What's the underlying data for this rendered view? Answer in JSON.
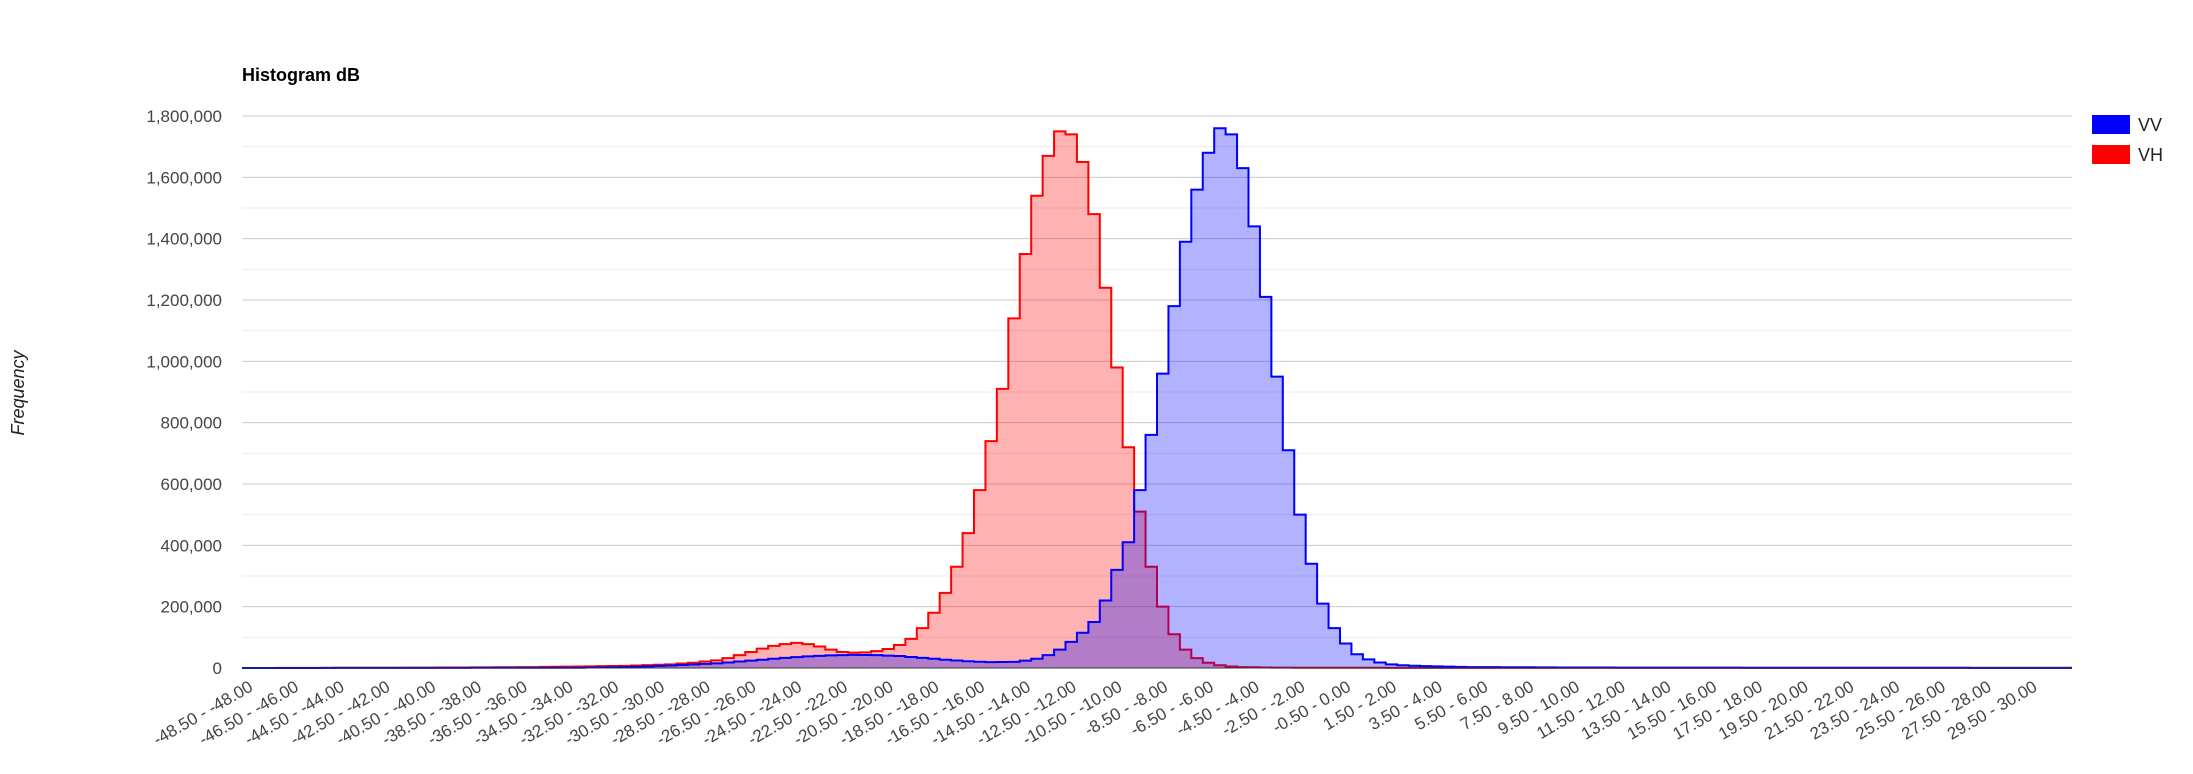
{
  "chart_data": {
    "type": "area",
    "title": "Histogram dB",
    "xlabel": "",
    "ylabel": "Frequency",
    "ylim": [
      0,
      1800000
    ],
    "y_ticks": [
      0,
      200000,
      400000,
      600000,
      800000,
      1000000,
      1200000,
      1400000,
      1600000,
      1800000
    ],
    "y_tick_labels": [
      "0",
      "200,000",
      "400,000",
      "600,000",
      "800,000",
      "1,000,000",
      "1,200,000",
      "1,400,000",
      "1,600,000",
      "1,800,000"
    ],
    "x_range": [
      -48.5,
      31.5
    ],
    "bin_width": 0.5,
    "x_tick_labels": [
      "-48.50 - -48.00",
      "-46.50 - -46.00",
      "-44.50 - -44.00",
      "-42.50 - -42.00",
      "-40.50 - -40.00",
      "-38.50 - -38.00",
      "-36.50 - -36.00",
      "-34.50 - -34.00",
      "-32.50 - -32.00",
      "-30.50 - -30.00",
      "-28.50 - -28.00",
      "-26.50 - -26.00",
      "-24.50 - -24.00",
      "-22.50 - -22.00",
      "-20.50 - -20.00",
      "-18.50 - -18.00",
      "-16.50 - -16.00",
      "-14.50 - -14.00",
      "-12.50 - -12.00",
      "-10.50 - -10.00",
      "-8.50 - -8.00",
      "-6.50 - -6.00",
      "-4.50 - -4.00",
      "-2.50 - -2.00",
      "-0.50 - 0.00",
      "1.50 - 2.00",
      "3.50 - 4.00",
      "5.50 - 6.00",
      "7.50 - 8.00",
      "9.50 - 10.00",
      "11.50 - 12.00",
      "13.50 - 14.00",
      "15.50 - 16.00",
      "17.50 - 18.00",
      "19.50 - 20.00",
      "21.50 - 22.00",
      "23.50 - 24.00",
      "25.50 - 26.00",
      "27.50 - 28.00",
      "29.50 - 30.00"
    ],
    "grid": true,
    "legend_position": "right",
    "series": [
      {
        "name": "VV",
        "color": "#0000ff",
        "fill": "#0000ff",
        "points": [
          [
            -48.5,
            0
          ],
          [
            -40,
            500
          ],
          [
            -34,
            1000
          ],
          [
            -32,
            3000
          ],
          [
            -30,
            8000
          ],
          [
            -28,
            15000
          ],
          [
            -26,
            27000
          ],
          [
            -25,
            33000
          ],
          [
            -24,
            38000
          ],
          [
            -23,
            41000
          ],
          [
            -22,
            43000
          ],
          [
            -21,
            42000
          ],
          [
            -20,
            39000
          ],
          [
            -19,
            33000
          ],
          [
            -18,
            27000
          ],
          [
            -17,
            22000
          ],
          [
            -16,
            19000
          ],
          [
            -15,
            20000
          ],
          [
            -14.5,
            24000
          ],
          [
            -14,
            30000
          ],
          [
            -13.5,
            42000
          ],
          [
            -13,
            60000
          ],
          [
            -12.5,
            85000
          ],
          [
            -12,
            115000
          ],
          [
            -11.5,
            150000
          ],
          [
            -11,
            220000
          ],
          [
            -10.5,
            320000
          ],
          [
            -10,
            410000
          ],
          [
            -9.5,
            580000
          ],
          [
            -9,
            760000
          ],
          [
            -8.5,
            960000
          ],
          [
            -8,
            1180000
          ],
          [
            -7.5,
            1390000
          ],
          [
            -7,
            1560000
          ],
          [
            -6.5,
            1680000
          ],
          [
            -6,
            1760000
          ],
          [
            -5.5,
            1740000
          ],
          [
            -5,
            1630000
          ],
          [
            -4.5,
            1440000
          ],
          [
            -4,
            1210000
          ],
          [
            -3.5,
            950000
          ],
          [
            -3,
            710000
          ],
          [
            -2.5,
            500000
          ],
          [
            -2,
            340000
          ],
          [
            -1.5,
            210000
          ],
          [
            -1,
            130000
          ],
          [
            -0.5,
            80000
          ],
          [
            0,
            45000
          ],
          [
            0.5,
            28000
          ],
          [
            1,
            18000
          ],
          [
            1.5,
            12000
          ],
          [
            2,
            9000
          ],
          [
            3,
            6000
          ],
          [
            5,
            3000
          ],
          [
            10,
            1500
          ],
          [
            20,
            800
          ],
          [
            31,
            500
          ]
        ]
      },
      {
        "name": "VH",
        "color": "#ff0000",
        "fill": "#ff0000",
        "points": [
          [
            -48.5,
            0
          ],
          [
            -42,
            1000
          ],
          [
            -38,
            2000
          ],
          [
            -36,
            3000
          ],
          [
            -34,
            5000
          ],
          [
            -32,
            7000
          ],
          [
            -30,
            12000
          ],
          [
            -29,
            17000
          ],
          [
            -28,
            25000
          ],
          [
            -27.5,
            32000
          ],
          [
            -27,
            42000
          ],
          [
            -26.5,
            52000
          ],
          [
            -26,
            63000
          ],
          [
            -25.5,
            72000
          ],
          [
            -25,
            78000
          ],
          [
            -24.5,
            82000
          ],
          [
            -24,
            78000
          ],
          [
            -23.5,
            70000
          ],
          [
            -23,
            60000
          ],
          [
            -22.5,
            52000
          ],
          [
            -22,
            50000
          ],
          [
            -21.5,
            51000
          ],
          [
            -21,
            55000
          ],
          [
            -20.5,
            62000
          ],
          [
            -20,
            75000
          ],
          [
            -19.5,
            95000
          ],
          [
            -19,
            130000
          ],
          [
            -18.5,
            180000
          ],
          [
            -18,
            245000
          ],
          [
            -17.5,
            330000
          ],
          [
            -17,
            440000
          ],
          [
            -16.5,
            580000
          ],
          [
            -16,
            740000
          ],
          [
            -15.5,
            910000
          ],
          [
            -15,
            1140000
          ],
          [
            -14.5,
            1350000
          ],
          [
            -14,
            1540000
          ],
          [
            -13.5,
            1670000
          ],
          [
            -13,
            1750000
          ],
          [
            -12.5,
            1740000
          ],
          [
            -12,
            1650000
          ],
          [
            -11.5,
            1480000
          ],
          [
            -11,
            1240000
          ],
          [
            -10.5,
            980000
          ],
          [
            -10,
            720000
          ],
          [
            -9.5,
            510000
          ],
          [
            -9,
            330000
          ],
          [
            -8.5,
            200000
          ],
          [
            -8,
            110000
          ],
          [
            -7.5,
            60000
          ],
          [
            -7,
            32000
          ],
          [
            -6.5,
            17000
          ],
          [
            -6,
            9000
          ],
          [
            -5.5,
            5000
          ],
          [
            -5,
            3000
          ],
          [
            -4,
            1500
          ],
          [
            -2,
            800
          ],
          [
            5,
            400
          ],
          [
            31,
            300
          ]
        ]
      }
    ]
  }
}
